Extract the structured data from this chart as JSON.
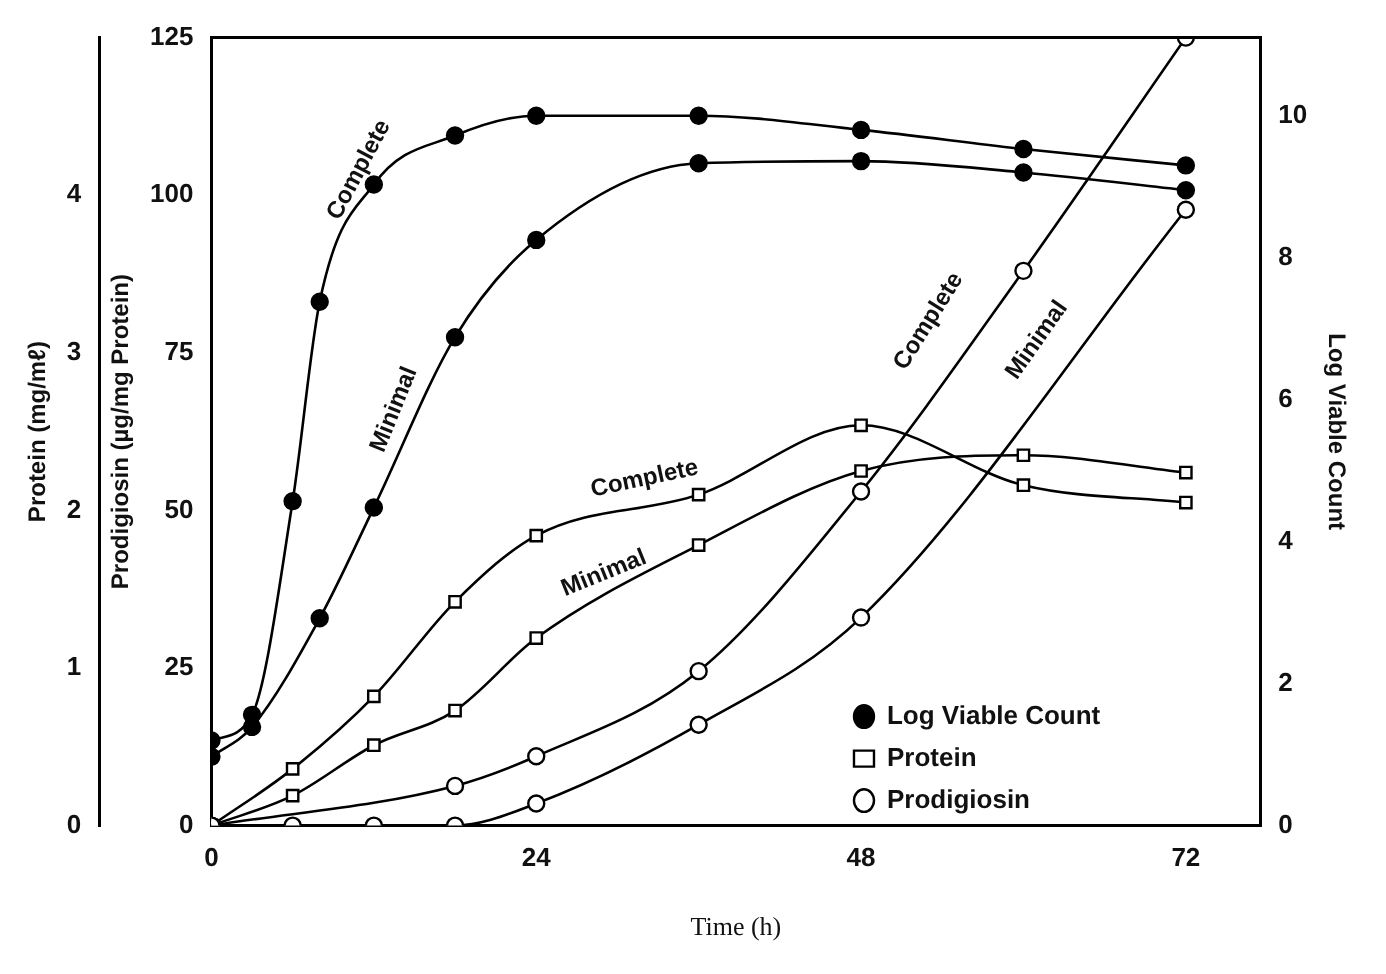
{
  "chart_data": {
    "type": "line",
    "xlabel": "Time (h)",
    "ylabel": "Prodigiosin (µg/mg Protein)",
    "y2label": "Log Viable Count",
    "y3label": "Protein (mg/mℓ)",
    "xlim": [
      0,
      77.5
    ],
    "xticks": [
      0,
      24,
      48,
      72
    ],
    "ylim": [
      0,
      125
    ],
    "yticks": [
      0,
      25,
      50,
      75,
      100,
      125
    ],
    "y2lim": [
      0,
      11.1
    ],
    "y2ticks": [
      0,
      2,
      4,
      6,
      8,
      10
    ],
    "y3lim": [
      0,
      5
    ],
    "y3ticks": [
      0,
      1,
      2,
      3,
      4
    ],
    "grid": false,
    "legend": "bottom right",
    "line_style": "solid",
    "series": [
      {
        "name": "Log Viable Count",
        "color": "#000000",
        "axis": "y2",
        "marker": "circle",
        "x": [
          0,
          3,
          6,
          8,
          12,
          18,
          24,
          36,
          48,
          60,
          72
        ],
        "values": [
          1.2,
          1.56,
          4.57,
          7.38,
          9.03,
          9.72,
          10.0,
          10.0,
          9.8,
          9.53,
          9.3
        ]
      },
      {
        "color": "#000000",
        "axis": "y2",
        "marker": "circle",
        "x": [
          0,
          3,
          8,
          12,
          18,
          24,
          36,
          48,
          60,
          72
        ],
        "values": [
          0.97,
          1.39,
          2.92,
          4.48,
          6.88,
          8.25,
          9.33,
          9.36,
          9.2,
          8.95
        ]
      },
      {
        "name": "Protein",
        "color": "#000000",
        "axis": "y3",
        "marker": "square",
        "x": [
          0,
          6,
          12,
          18,
          24,
          36,
          48,
          60,
          72
        ],
        "values": [
          0,
          0.36,
          0.82,
          1.42,
          1.84,
          2.1,
          2.54,
          2.16,
          2.05
        ]
      },
      {
        "color": "#000000",
        "axis": "y3",
        "marker": "square",
        "x": [
          0,
          6,
          12,
          18,
          24,
          36,
          48,
          60,
          72
        ],
        "values": [
          0,
          0.19,
          0.51,
          0.73,
          1.19,
          1.78,
          2.25,
          2.35,
          2.24
        ]
      },
      {
        "name": "Prodigiosin",
        "color": "#000000",
        "marker": "circle",
        "x": [
          0,
          18,
          24,
          36,
          48,
          60,
          72
        ],
        "values": [
          0,
          6.3,
          11,
          24.5,
          53,
          88,
          125
        ]
      },
      {
        "color": "#000000",
        "marker": "circle",
        "x": [
          0,
          6,
          12,
          18,
          24,
          36,
          48,
          72
        ],
        "values": [
          0,
          0,
          0,
          0,
          3.5,
          16,
          33,
          97.7
        ]
      }
    ],
    "annotations": [
      "Complete",
      "Minimal",
      "Complete",
      "Minimal",
      "Complete",
      "Minimal"
    ]
  }
}
